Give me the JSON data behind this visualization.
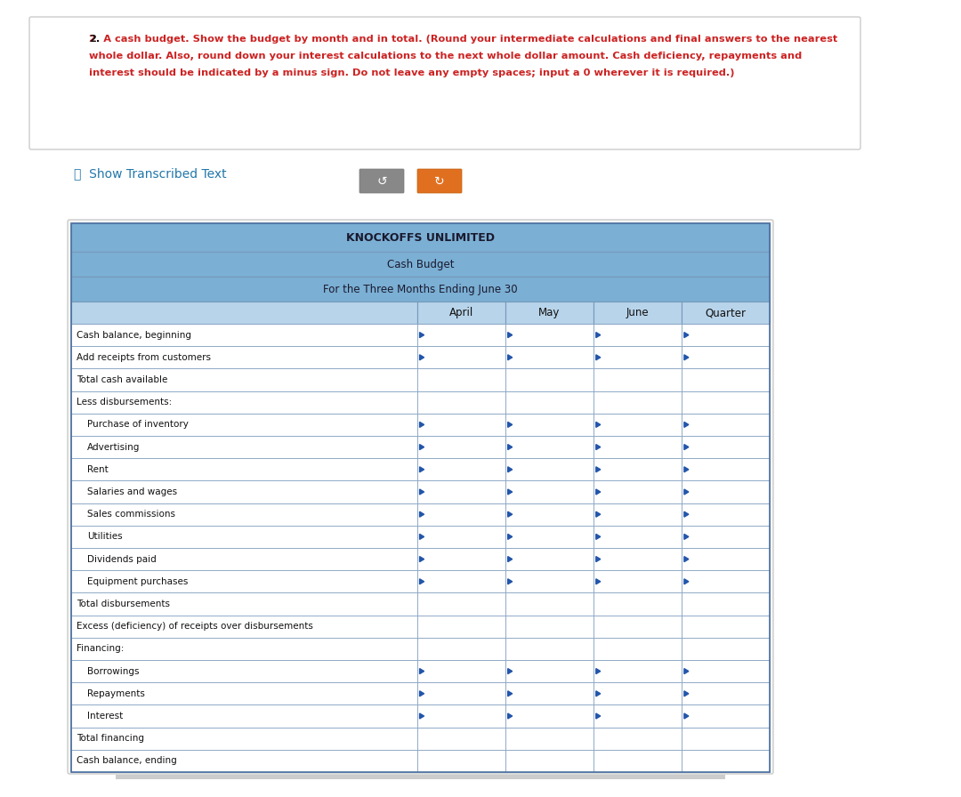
{
  "title_line1": "KNOCKOFFS UNLIMITED",
  "title_line2": "Cash Budget",
  "title_line3": "For the Three Months Ending June 30",
  "columns": [
    "April",
    "May",
    "June",
    "Quarter"
  ],
  "rows": [
    {
      "label": "Cash balance, beginning",
      "indent": 0,
      "has_input": true
    },
    {
      "label": "Add receipts from customers",
      "indent": 0,
      "has_input": true
    },
    {
      "label": "Total cash available",
      "indent": 0,
      "has_input": false
    },
    {
      "label": "Less disbursements:",
      "indent": 0,
      "has_input": false
    },
    {
      "label": "Purchase of inventory",
      "indent": 1,
      "has_input": true
    },
    {
      "label": "Advertising",
      "indent": 1,
      "has_input": true
    },
    {
      "label": "Rent",
      "indent": 1,
      "has_input": true
    },
    {
      "label": "Salaries and wages",
      "indent": 1,
      "has_input": true
    },
    {
      "label": "Sales commissions",
      "indent": 1,
      "has_input": true
    },
    {
      "label": "Utilities",
      "indent": 1,
      "has_input": true
    },
    {
      "label": "Dividends paid",
      "indent": 1,
      "has_input": true
    },
    {
      "label": "Equipment purchases",
      "indent": 1,
      "has_input": true
    },
    {
      "label": "Total disbursements",
      "indent": 0,
      "has_input": false
    },
    {
      "label": "Excess (deficiency) of receipts over disbursements",
      "indent": 0,
      "has_input": false
    },
    {
      "label": "Financing:",
      "indent": 0,
      "has_input": false
    },
    {
      "label": "Borrowings",
      "indent": 1,
      "has_input": true
    },
    {
      "label": "Repayments",
      "indent": 1,
      "has_input": true
    },
    {
      "label": "Interest",
      "indent": 1,
      "has_input": true
    },
    {
      "label": "Total financing",
      "indent": 0,
      "has_input": false
    },
    {
      "label": "Cash balance, ending",
      "indent": 0,
      "has_input": false
    }
  ],
  "header_bg": "#7bafd4",
  "col_header_bg": "#b8d4ea",
  "border_color": "#7899bb",
  "border_color_dark": "#4a6fa0",
  "input_marker_color": "#2255aa",
  "page_bg": "#ffffff",
  "outer_box_bg": "#ffffff",
  "outer_box_border": "#cccccc",
  "table_outer_bg": "#ffffff",
  "instr_text_red": "#cc2222",
  "instr_text_black": "#111111",
  "link_color": "#2277aa",
  "btn_gray": "#888888",
  "btn_orange": "#e07020"
}
